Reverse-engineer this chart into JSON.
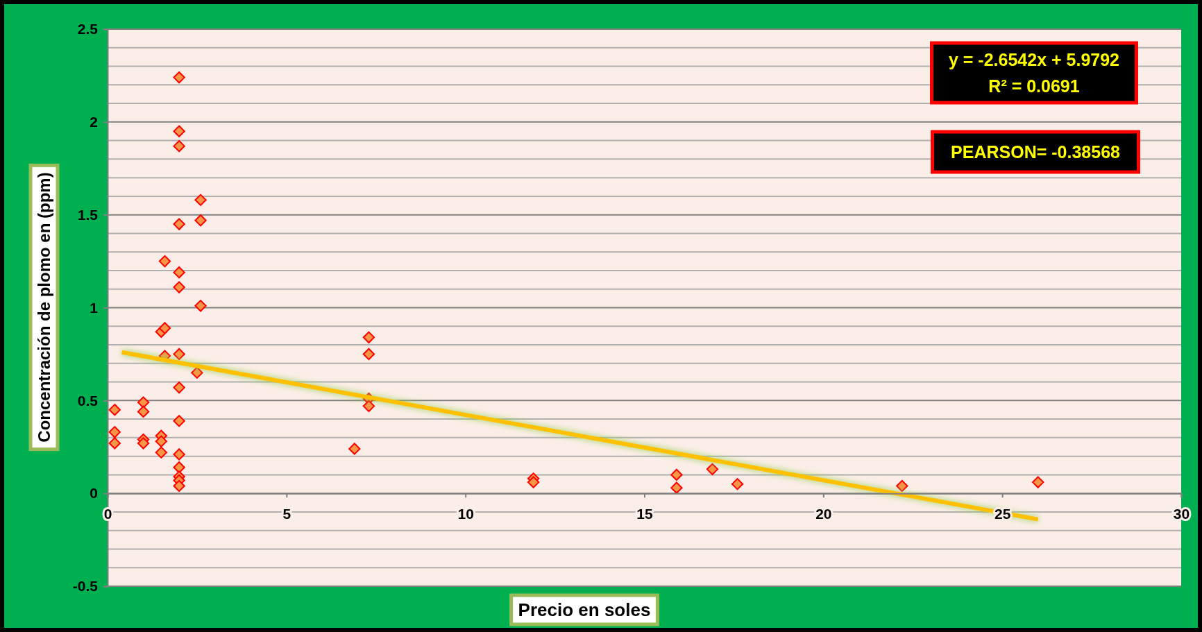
{
  "chart_data": {
    "type": "scatter",
    "xlabel": "Precio en soles",
    "ylabel": "Concentración de plomo  en (ppm)",
    "xlim": [
      0,
      30
    ],
    "xticks": [
      0,
      5,
      10,
      15,
      20,
      25,
      30
    ],
    "ylim": [
      -0.5,
      2.5
    ],
    "yticks": [
      -0.5,
      {
        "value": -0.4,
        "label": null
      },
      {
        "value": -0.3,
        "label": null
      },
      {
        "value": -0.2,
        "label": null
      },
      {
        "value": -0.1,
        "label": null
      },
      0,
      {
        "value": 0.1,
        "label": null
      },
      {
        "value": 0.2,
        "label": null
      },
      {
        "value": 0.3,
        "label": null
      },
      {
        "value": 0.4,
        "label": null
      },
      0.5,
      {
        "value": 0.6,
        "label": null
      },
      {
        "value": 0.7,
        "label": null
      },
      {
        "value": 0.8,
        "label": null
      },
      {
        "value": 0.9,
        "label": null
      },
      1,
      {
        "value": 1.1,
        "label": null
      },
      {
        "value": 1.2,
        "label": null
      },
      {
        "value": 1.3,
        "label": null
      },
      {
        "value": 1.4,
        "label": null
      },
      1.5,
      {
        "value": 1.6,
        "label": null
      },
      {
        "value": 1.7,
        "label": null
      },
      {
        "value": 1.8,
        "label": null
      },
      {
        "value": 1.9,
        "label": null
      },
      2,
      {
        "value": 2.1,
        "label": null
      },
      {
        "value": 2.2,
        "label": null
      },
      {
        "value": 2.3,
        "label": null
      },
      {
        "value": 2.4,
        "label": null
      },
      2.5
    ],
    "grid": "y",
    "marker": "diamond",
    "series": [
      {
        "color": "#f79646",
        "x": [
          0.2,
          0.2,
          0.2,
          1.0,
          1.0,
          1.0,
          1.0,
          1.5,
          1.5,
          1.5,
          1.5,
          1.6,
          1.6,
          1.6,
          2.0,
          2.0,
          2.0,
          2.0,
          2.0,
          2.0,
          2.0,
          2.0,
          2.0,
          2.0,
          2.0,
          2.0,
          2.0,
          2.0,
          2.5,
          2.6,
          2.6,
          2.6,
          6.9,
          7.3,
          7.3,
          7.3,
          7.3,
          11.9,
          11.9,
          15.9,
          15.9,
          16.9,
          17.6,
          22.2,
          26.0
        ],
        "values": [
          0.45,
          0.33,
          0.27,
          0.49,
          0.44,
          0.29,
          0.27,
          0.31,
          0.28,
          0.22,
          0.87,
          1.25,
          0.89,
          0.74,
          2.24,
          1.95,
          1.87,
          1.45,
          1.19,
          1.11,
          0.75,
          0.57,
          0.39,
          0.21,
          0.14,
          0.09,
          0.07,
          0.04,
          0.65,
          1.58,
          1.47,
          1.01,
          0.24,
          0.84,
          0.75,
          0.51,
          0.47,
          0.08,
          0.06,
          0.1,
          0.03,
          0.13,
          0.05,
          0.04,
          0.06
        ]
      },
      {
        "type": "line",
        "color": "#ffc000",
        "marker": "none",
        "x": [
          0.4,
          26.0
        ],
        "values": [
          0.76,
          -0.14
        ]
      }
    ],
    "annotations": [
      "y = -2.6542x + 5.9792\nR² = 0.0691",
      "PEARSON= -0.38568"
    ]
  }
}
